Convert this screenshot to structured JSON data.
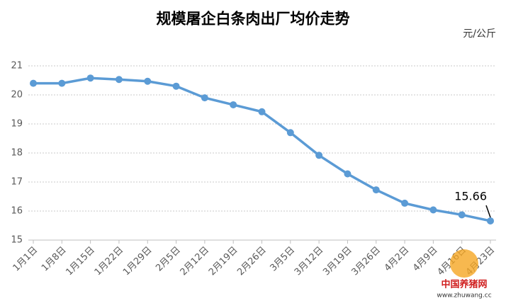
{
  "chart_data": {
    "type": "line",
    "title": "规模屠企白条肉出厂均价走势",
    "unit": "元/公斤",
    "categories": [
      "1月1日",
      "1月8日",
      "1月15日",
      "1月22日",
      "1月29日",
      "2月5日",
      "2月12日",
      "2月19日",
      "2月26日",
      "3月5日",
      "3月12日",
      "3月19日",
      "3月26日",
      "4月2日",
      "4月9日",
      "4月16日",
      "4月23日"
    ],
    "values": [
      20.4,
      20.4,
      20.58,
      20.53,
      20.47,
      20.3,
      19.9,
      19.66,
      19.42,
      18.7,
      17.92,
      17.28,
      16.73,
      16.27,
      16.04,
      15.87,
      15.66
    ],
    "color": "#5b9bd5",
    "ylim": [
      15,
      21
    ],
    "yticks": [
      15,
      16,
      17,
      18,
      19,
      20,
      21
    ],
    "grid": true,
    "watermark": {
      "name": "中国养猪网",
      "url": "www.zhuwang.cc"
    }
  }
}
